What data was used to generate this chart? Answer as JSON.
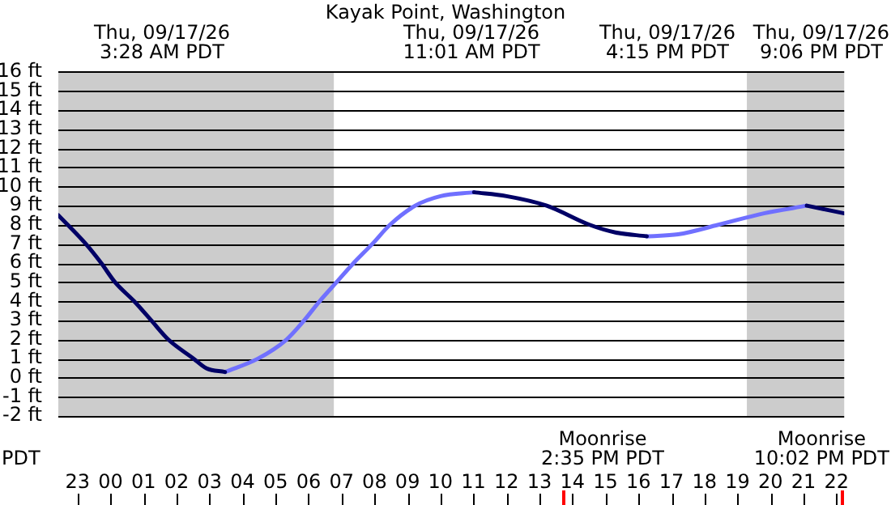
{
  "chart_data": {
    "type": "line",
    "title": "Kayak Point, Washington",
    "x": [
      "--09-16T22:25",
      "--09-16T23:15",
      "--09-16T23:43",
      "--09-17T00:08",
      "--09-17T00:43",
      "--09-17T01:14",
      "--09-17T01:45",
      "--09-17T02:31",
      "--09-17T02:54",
      "--09-17T03:28",
      "--09-17T04:28",
      "--09-17T05:20",
      "--09-17T05:52",
      "--09-17T06:20",
      "--09-17T06:51",
      "--09-17T07:22",
      "--09-17T07:56",
      "--09-17T08:28",
      "--09-17T09:14",
      "--09-17T10:00",
      "--09-17T11:01",
      "--09-17T12:00",
      "--09-17T13:13",
      "--09-17T14:31",
      "--09-17T15:18",
      "--09-17T16:15",
      "--09-17T17:12",
      "--09-17T18:25",
      "--09-17T19:48",
      "--09-17T21:06",
      "--09-17T22:14"
    ],
    "series": [
      {
        "color": "#000066",
        "values": [
          8.5,
          7,
          6,
          5,
          4,
          3,
          2,
          1,
          0.5,
          0.3,
          null,
          null,
          null,
          null,
          null,
          null,
          null,
          null,
          null,
          null,
          9.7,
          9.5,
          9,
          8,
          7.6,
          7.4,
          null,
          null,
          null,
          9.0,
          8.6
        ]
      },
      {
        "color": "#7070ff",
        "values": [
          null,
          null,
          null,
          null,
          null,
          null,
          null,
          null,
          null,
          0.3,
          1,
          2,
          3,
          4,
          5,
          6,
          7,
          8,
          9,
          9.5,
          9.7,
          null,
          null,
          null,
          null,
          7.4,
          7.5,
          8,
          8.6,
          9.0,
          null
        ]
      }
    ],
    "xlim": [
      "--09-16T22:25",
      "--09-17T22:14"
    ],
    "xticks": [
      {
        "value": "--09-16T23:00",
        "label": "23"
      },
      {
        "value": "--09-17T00:00",
        "label": "00"
      },
      {
        "value": "--09-17T01:00",
        "label": "01"
      },
      {
        "value": "--09-17T02:00",
        "label": "02"
      },
      {
        "value": "--09-17T03:00",
        "label": "03"
      },
      {
        "value": "--09-17T04:00",
        "label": "04"
      },
      {
        "value": "--09-17T05:00",
        "label": "05"
      },
      {
        "value": "--09-17T06:00",
        "label": "06"
      },
      {
        "value": "--09-17T07:00",
        "label": "07"
      },
      {
        "value": "--09-17T08:00",
        "label": "08"
      },
      {
        "value": "--09-17T09:00",
        "label": "09"
      },
      {
        "value": "--09-17T10:00",
        "label": "10"
      },
      {
        "value": "--09-17T11:00",
        "label": "11"
      },
      {
        "value": "--09-17T12:00",
        "label": "12"
      },
      {
        "value": "--09-17T13:00",
        "label": "13"
      },
      {
        "value": "--09-17T14:00",
        "label": "14"
      },
      {
        "value": "--09-17T15:00",
        "label": "15"
      },
      {
        "value": "--09-17T16:00",
        "label": "16"
      },
      {
        "value": "--09-17T17:00",
        "label": "17"
      },
      {
        "value": "--09-17T18:00",
        "label": "18"
      },
      {
        "value": "--09-17T19:00",
        "label": "19"
      },
      {
        "value": "--09-17T20:00",
        "label": "20"
      },
      {
        "value": "--09-17T21:00",
        "label": "21"
      },
      {
        "value": "--09-17T22:00",
        "label": "22"
      }
    ],
    "ylim": [
      -2,
      16
    ],
    "yticks": [
      {
        "value": -2,
        "label": "-2 ft"
      },
      {
        "value": -1,
        "label": "-1 ft"
      },
      {
        "value": 0,
        "label": "0 ft"
      },
      {
        "value": 1,
        "label": "1 ft"
      },
      {
        "value": 2,
        "label": "2 ft"
      },
      {
        "value": 3,
        "label": "3 ft"
      },
      {
        "value": 4,
        "label": "4 ft"
      },
      {
        "value": 5,
        "label": "5 ft"
      },
      {
        "value": 6,
        "label": "6 ft"
      },
      {
        "value": 7,
        "label": "7 ft"
      },
      {
        "value": 8,
        "label": "8 ft"
      },
      {
        "value": 9,
        "label": "9 ft"
      },
      {
        "value": 10,
        "label": "10 ft"
      },
      {
        "value": 11,
        "label": "11 ft"
      },
      {
        "value": 12,
        "label": "12 ft"
      },
      {
        "value": 13,
        "label": "13 ft"
      },
      {
        "value": 14,
        "label": "14 ft"
      },
      {
        "value": 15,
        "label": "15 ft"
      },
      {
        "value": 16,
        "label": "16 ft"
      }
    ],
    "grid": "y",
    "bands": [
      {
        "axis": "x",
        "from": "--09-16T22:25",
        "to": "--09-17T06:46",
        "color": "#cccccc"
      },
      {
        "axis": "x",
        "from": "--09-17T19:17",
        "to": "--09-17T22:14",
        "color": "#cccccc"
      }
    ],
    "annotations": [
      "Thu, 09/17/26\n3:28 AM PDT",
      "Thu, 09/17/26\n11:01 AM PDT",
      "Thu, 09/17/26\n4:15 PM PDT",
      "Thu, 09/17/26\n9:06 PM PDT",
      "Moonrise\n2:35 PM PDT",
      "Moonrise\n10:02 PM PDT",
      "PDT"
    ]
  }
}
